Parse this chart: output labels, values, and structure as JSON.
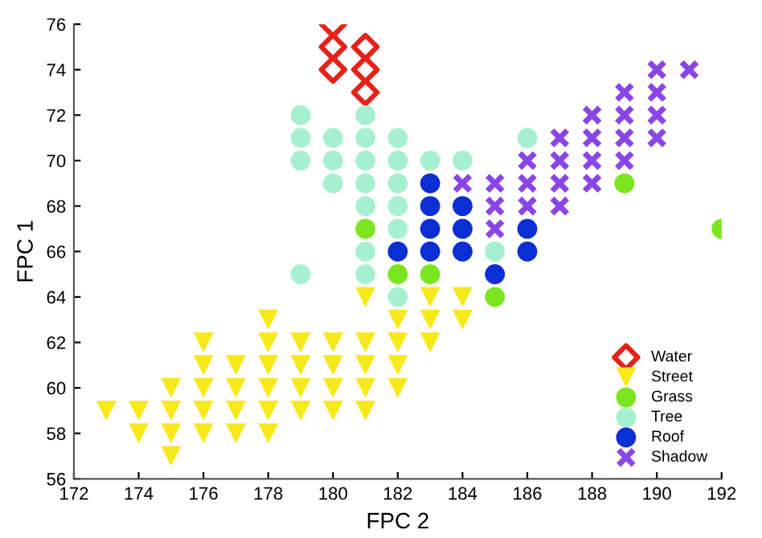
{
  "chart_data": {
    "type": "scatter",
    "xlabel": "FPC 2",
    "ylabel": "FPC 1",
    "xlim": [
      172,
      192
    ],
    "ylim": [
      56,
      76
    ],
    "xticks": [
      172,
      174,
      176,
      178,
      180,
      182,
      184,
      186,
      188,
      190,
      192
    ],
    "yticks": [
      56,
      58,
      60,
      62,
      64,
      66,
      68,
      70,
      72,
      74,
      76
    ],
    "grid": false,
    "legend": "bottom right",
    "series": [
      {
        "name": "Water",
        "color": "#e52119",
        "marker": "diamond",
        "x": [
          180,
          180,
          180,
          181,
          181,
          181
        ],
        "values": [
          76,
          75,
          74,
          75,
          74,
          73
        ]
      },
      {
        "name": "Street",
        "color": "#f7e81a",
        "marker": "triangle",
        "x": [
          173,
          174,
          174,
          175,
          175,
          175,
          175,
          176,
          176,
          176,
          176,
          176,
          177,
          177,
          177,
          177,
          178,
          178,
          178,
          178,
          178,
          178,
          179,
          179,
          179,
          179,
          180,
          180,
          180,
          180,
          181,
          181,
          181,
          181,
          181,
          182,
          182,
          182,
          182,
          183,
          183,
          183,
          184,
          184
        ],
        "values": [
          59,
          59,
          58,
          60,
          59,
          58,
          57,
          62,
          61,
          60,
          59,
          58,
          61,
          60,
          59,
          58,
          63,
          62,
          61,
          60,
          59,
          58,
          62,
          61,
          60,
          59,
          62,
          61,
          60,
          59,
          64,
          62,
          61,
          60,
          59,
          63,
          62,
          61,
          60,
          64,
          63,
          62,
          64,
          63
        ]
      },
      {
        "name": "Grass",
        "color": "#7be51e",
        "marker": "circle",
        "x": [
          181,
          182,
          183,
          185,
          189,
          192
        ],
        "values": [
          67,
          65,
          65,
          64,
          69,
          67
        ]
      },
      {
        "name": "Tree",
        "color": "#a6f0d0",
        "marker": "circle",
        "x": [
          179,
          179,
          179,
          179,
          180,
          180,
          180,
          181,
          181,
          181,
          181,
          181,
          181,
          181,
          182,
          182,
          182,
          182,
          182,
          182,
          183,
          184,
          185,
          186
        ],
        "values": [
          72,
          71,
          70,
          65,
          71,
          70,
          69,
          72,
          71,
          70,
          69,
          68,
          66,
          65,
          71,
          70,
          69,
          68,
          67,
          64,
          70,
          70,
          66,
          71
        ]
      },
      {
        "name": "Roof",
        "color": "#0b2fd2",
        "marker": "circle",
        "x": [
          182,
          183,
          183,
          183,
          183,
          184,
          184,
          184,
          185,
          186,
          186
        ],
        "values": [
          66,
          69,
          68,
          67,
          66,
          68,
          67,
          66,
          65,
          67,
          66
        ]
      },
      {
        "name": "Shadow",
        "color": "#8a45e6",
        "marker": "cross",
        "x": [
          184,
          185,
          185,
          185,
          186,
          186,
          186,
          187,
          187,
          187,
          187,
          188,
          188,
          188,
          188,
          189,
          189,
          189,
          189,
          190,
          190,
          190,
          190,
          191
        ],
        "values": [
          69,
          69,
          68,
          67,
          70,
          69,
          68,
          71,
          70,
          69,
          68,
          72,
          71,
          70,
          69,
          73,
          72,
          71,
          70,
          74,
          73,
          72,
          71,
          74
        ]
      }
    ]
  }
}
